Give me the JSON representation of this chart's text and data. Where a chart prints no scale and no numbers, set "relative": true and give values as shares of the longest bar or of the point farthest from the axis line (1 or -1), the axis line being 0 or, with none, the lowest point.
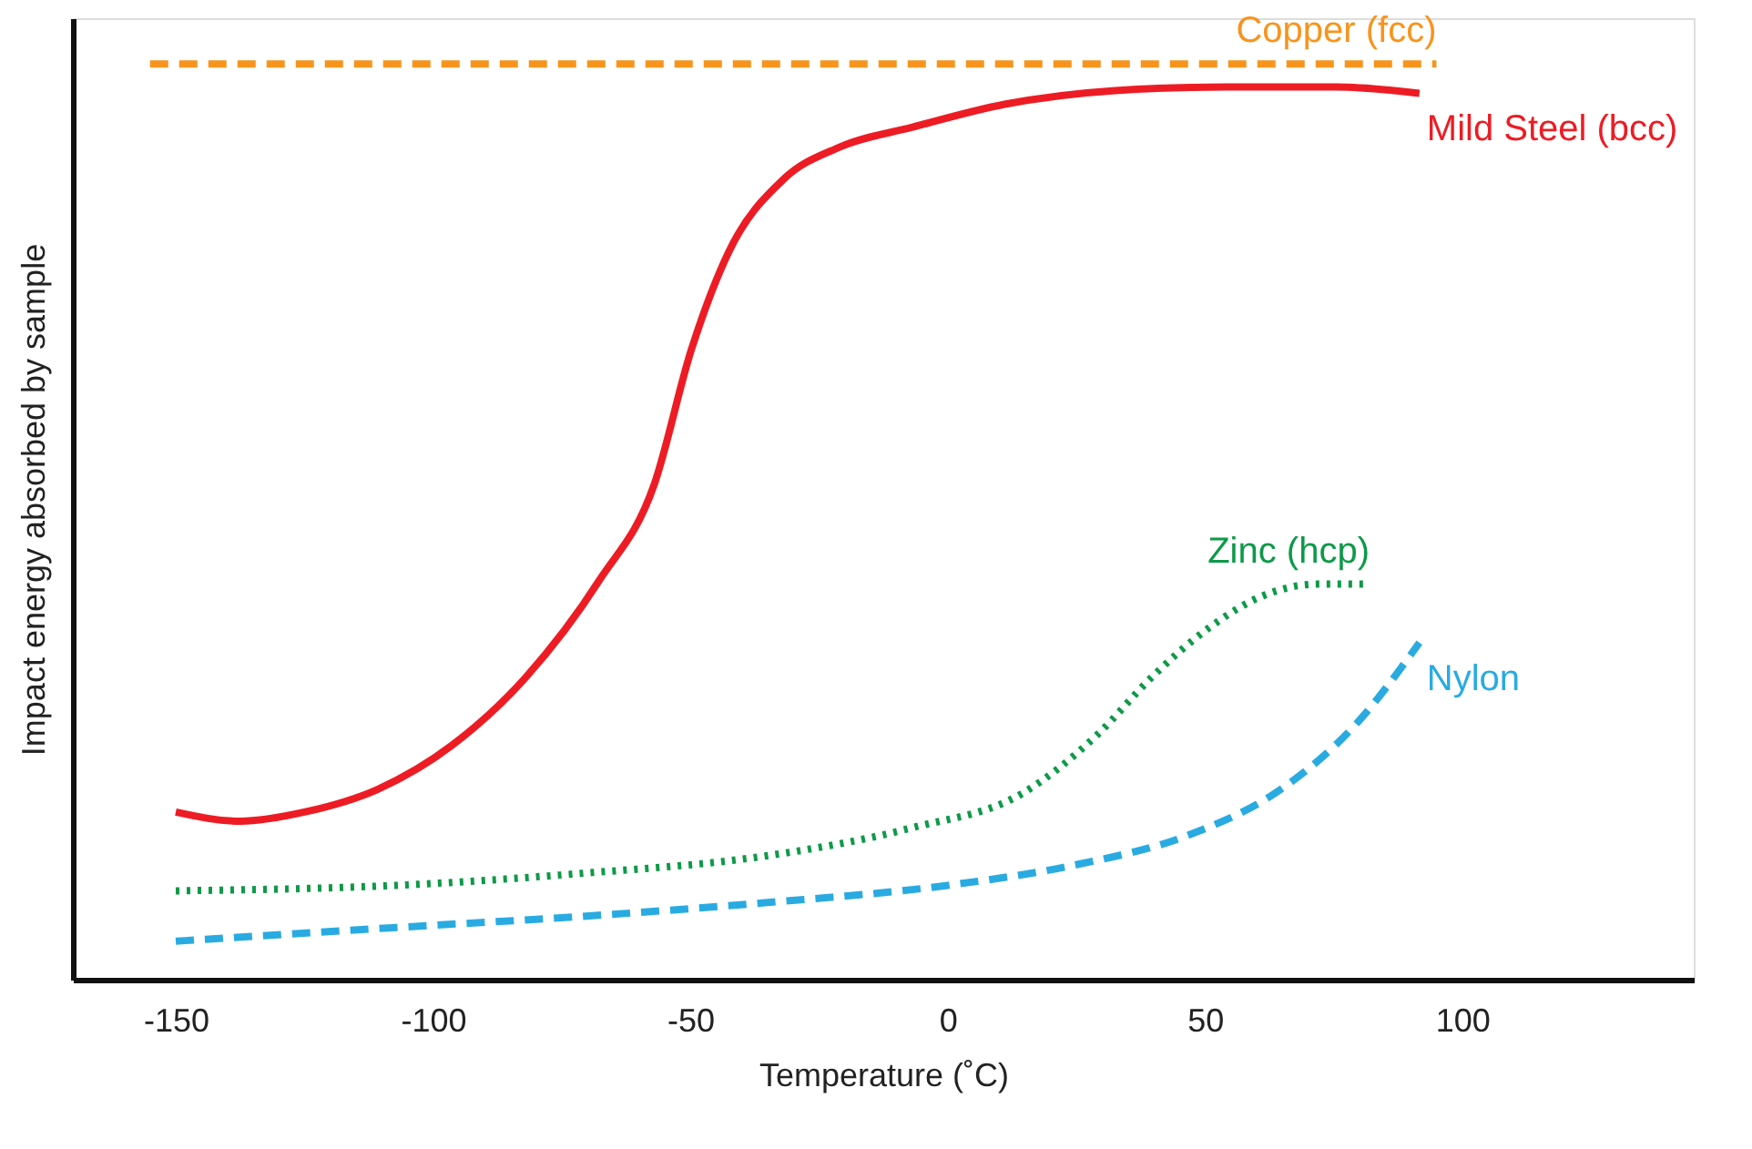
{
  "chart_data": {
    "type": "line",
    "relative": true,
    "xlabel": "Temperature (˚C)",
    "ylabel": "Impact energy absorbed by sample",
    "xlim": [
      -170,
      145
    ],
    "xticks": [
      -150,
      -100,
      -50,
      0,
      50,
      100
    ],
    "grid": false,
    "marker": "none",
    "series": [
      {
        "name": "Copper (fcc)",
        "color": "#f7941d",
        "line_style": "dashed",
        "x": [
          -155,
          95
        ],
        "values": [
          1,
          1
        ]
      },
      {
        "name": "Mild Steel (bcc)",
        "color": "#ed1c24",
        "line_style": "solid",
        "x": [
          -150,
          -137.5,
          -125,
          -110.7,
          -96.3,
          -82,
          -67.7,
          -57,
          -49.8,
          -42.6,
          -31.9,
          -21.1,
          -6.8,
          11.1,
          32.6,
          54.1,
          75.6,
          91.7
        ],
        "values": [
          0.183,
          0.173,
          0.183,
          0.208,
          0.256,
          0.33,
          0.436,
          0.541,
          0.688,
          0.794,
          0.874,
          0.909,
          0.931,
          0.956,
          0.971,
          0.975,
          0.975,
          0.968
        ]
      },
      {
        "name": "Zinc (hcp)",
        "color": "#0d9a48",
        "line_style": "dotted",
        "x": [
          -150,
          -107.1,
          -71.3,
          -35.5,
          -6.8,
          14.7,
          29,
          39.8,
          50.5,
          61.2,
          72,
          82
        ],
        "values": [
          0.097,
          0.103,
          0.116,
          0.135,
          0.166,
          0.204,
          0.267,
          0.331,
          0.383,
          0.419,
          0.432,
          0.432
        ]
      },
      {
        "name": "Nylon",
        "color": "#29abe2",
        "line_style": "dashed",
        "x": [
          -150,
          -107.1,
          -71.3,
          -35.5,
          0,
          25.4,
          46.9,
          64.8,
          79.2,
          91.7
        ],
        "values": [
          0.042,
          0.057,
          0.069,
          0.084,
          0.103,
          0.126,
          0.158,
          0.208,
          0.278,
          0.368
        ]
      }
    ]
  }
}
